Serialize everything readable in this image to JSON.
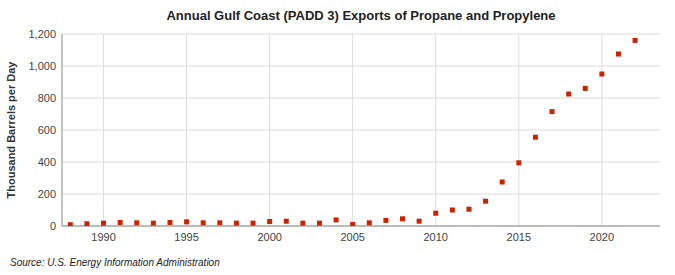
{
  "chart_data": {
    "type": "scatter",
    "title": "Annual Gulf Coast (PADD 3) Exports of Propane and Propylene",
    "ylabel": "Thousand Barrels per Day",
    "source": "Source: U.S. Energy Information Administration",
    "x": [
      1988,
      1989,
      1990,
      1991,
      1992,
      1993,
      1994,
      1995,
      1996,
      1997,
      1998,
      1999,
      2000,
      2001,
      2002,
      2003,
      2004,
      2005,
      2006,
      2007,
      2008,
      2009,
      2010,
      2011,
      2012,
      2013,
      2014,
      2015,
      2016,
      2017,
      2018,
      2019,
      2020,
      2021,
      2022
    ],
    "values": [
      8,
      14,
      18,
      22,
      20,
      18,
      22,
      26,
      20,
      20,
      18,
      18,
      28,
      30,
      18,
      18,
      38,
      10,
      20,
      35,
      45,
      30,
      80,
      100,
      105,
      155,
      275,
      395,
      555,
      715,
      825,
      860,
      950,
      1075,
      1160
    ],
    "color": "#cc2200",
    "marker": "square",
    "ylim": [
      0,
      1200
    ],
    "yticks": [
      0,
      200,
      400,
      600,
      800,
      {
        "value": 1000,
        "label": "1,000"
      },
      {
        "value": 1200,
        "label": "1,200"
      }
    ],
    "xlim": [
      1987.5,
      2023.5
    ],
    "xticks": [
      1990,
      1995,
      2000,
      2005,
      2010,
      2015,
      2020
    ],
    "grid": true
  }
}
